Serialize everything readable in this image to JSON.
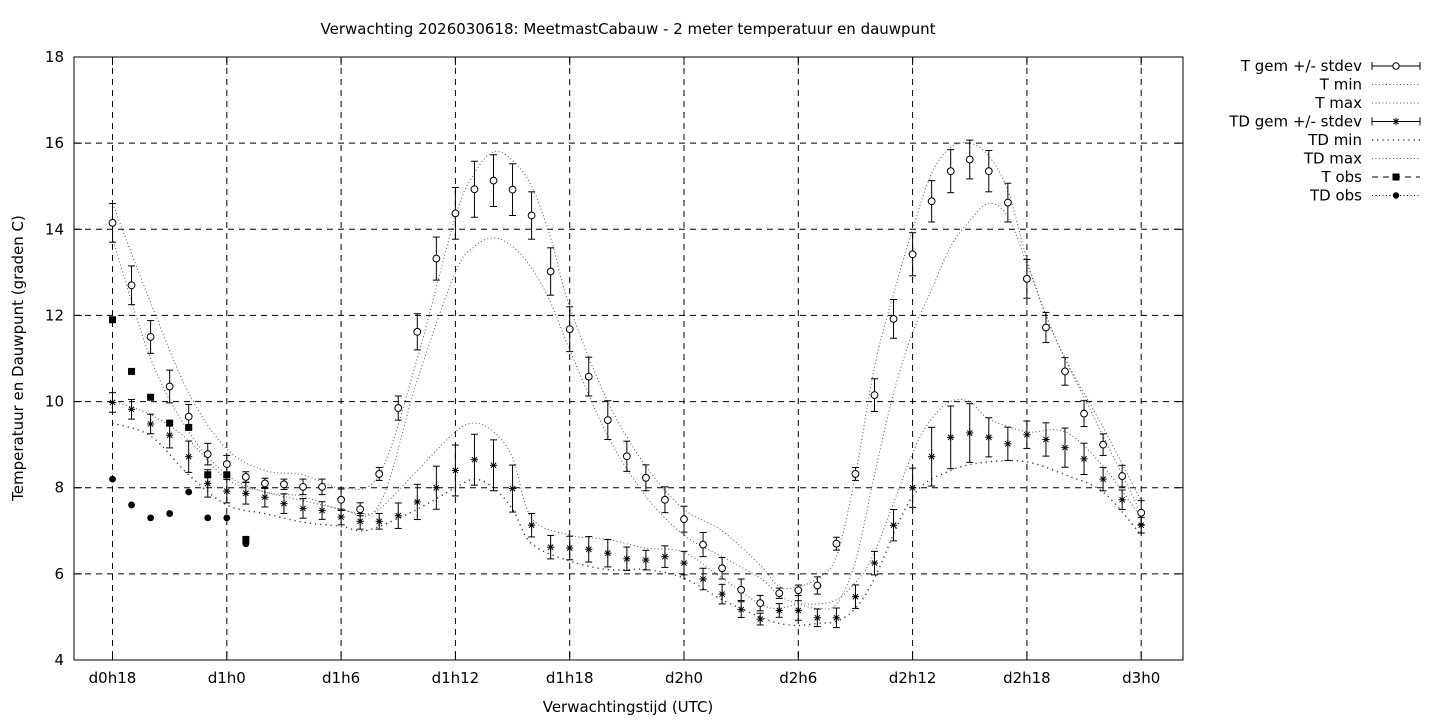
{
  "chart_data": {
    "type": "line",
    "title": "Verwachting 2026030618: MeetmastCabauw - 2 meter temperatuur en dauwpunt",
    "xlabel": "Verwachtingstijd (UTC)",
    "ylabel": "Temperatuur en Dauwpunt (graden C)",
    "xlim": [
      18,
      78
    ],
    "ylim": [
      4,
      18
    ],
    "x_unit": "hours since d0h0",
    "x_ticks": [
      {
        "x": 18,
        "label": "d0h18"
      },
      {
        "x": 24,
        "label": "d1h0"
      },
      {
        "x": 30,
        "label": "d1h6"
      },
      {
        "x": 36,
        "label": "d1h12"
      },
      {
        "x": 42,
        "label": "d1h18"
      },
      {
        "x": 48,
        "label": "d2h0"
      },
      {
        "x": 54,
        "label": "d2h6"
      },
      {
        "x": 60,
        "label": "d2h12"
      },
      {
        "x": 66,
        "label": "d2h18"
      },
      {
        "x": 72,
        "label": "d3h0"
      }
    ],
    "y_ticks": [
      4,
      6,
      8,
      10,
      12,
      14,
      16,
      18
    ],
    "grid": true,
    "legend_position": "outside-right",
    "legend": [
      {
        "label": "T gem +/- stdev",
        "style": "errorbar-circle"
      },
      {
        "label": "T min",
        "style": "dotted"
      },
      {
        "label": "T max",
        "style": "dotted"
      },
      {
        "label": "TD gem +/- stdev",
        "style": "errorbar-star"
      },
      {
        "label": "TD min",
        "style": "sparse-dotted"
      },
      {
        "label": "TD max",
        "style": "dotted"
      },
      {
        "label": "T obs",
        "style": "dashed-square"
      },
      {
        "label": "TD obs",
        "style": "dotted-dot"
      }
    ],
    "series": [
      {
        "name": "T gem +/- stdev",
        "x": [
          18,
          19,
          20,
          21,
          22,
          23,
          24,
          25,
          26,
          27,
          28,
          29,
          30,
          31,
          32,
          33,
          34,
          35,
          36,
          37,
          38,
          39,
          40,
          41,
          42,
          43,
          44,
          45,
          46,
          47,
          48,
          49,
          50,
          51,
          52,
          53,
          54,
          55,
          56,
          57,
          58,
          59,
          60,
          61,
          62,
          63,
          64,
          65,
          66,
          67,
          68,
          69,
          70,
          71,
          72
        ],
        "mean": [
          14.15,
          12.7,
          11.5,
          10.35,
          9.65,
          8.78,
          8.55,
          8.25,
          8.1,
          8.08,
          8.02,
          8.02,
          7.72,
          7.5,
          8.32,
          9.85,
          11.62,
          13.32,
          14.37,
          14.93,
          15.13,
          14.92,
          14.32,
          13.02,
          11.68,
          10.58,
          9.57,
          8.73,
          8.23,
          7.72,
          7.27,
          6.68,
          6.13,
          5.63,
          5.32,
          5.55,
          5.62,
          5.73,
          6.7,
          8.32,
          10.15,
          11.92,
          13.42,
          14.65,
          15.35,
          15.62,
          15.35,
          14.62,
          12.85,
          11.72,
          10.7,
          9.72,
          9.0,
          8.27,
          7.42
        ],
        "stdev": [
          0.45,
          0.45,
          0.38,
          0.38,
          0.28,
          0.25,
          0.2,
          0.12,
          0.12,
          0.12,
          0.18,
          0.18,
          0.25,
          0.15,
          0.15,
          0.28,
          0.42,
          0.5,
          0.6,
          0.65,
          0.6,
          0.6,
          0.55,
          0.55,
          0.52,
          0.45,
          0.45,
          0.35,
          0.3,
          0.3,
          0.3,
          0.28,
          0.25,
          0.25,
          0.18,
          0.12,
          0.12,
          0.2,
          0.15,
          0.15,
          0.38,
          0.45,
          0.5,
          0.48,
          0.5,
          0.45,
          0.48,
          0.45,
          0.45,
          0.35,
          0.32,
          0.3,
          0.25,
          0.25,
          0.28
        ]
      },
      {
        "name": "T min",
        "x": [
          18,
          20,
          22,
          24,
          26,
          28,
          30,
          32,
          34,
          36,
          37,
          38,
          39,
          40,
          41,
          42,
          44,
          46,
          48,
          50,
          52,
          53,
          54,
          55,
          56,
          57,
          58,
          59,
          60,
          61,
          62,
          63,
          64,
          65,
          66,
          67,
          68,
          70,
          72
        ],
        "values": [
          13.8,
          11.0,
          9.3,
          8.3,
          7.9,
          7.8,
          7.5,
          7.6,
          10.5,
          13.0,
          13.6,
          13.8,
          13.6,
          13.1,
          12.3,
          11.2,
          9.2,
          7.8,
          6.9,
          6.4,
          5.9,
          5.5,
          5.3,
          5.2,
          5.3,
          6.3,
          8.3,
          10.2,
          11.6,
          12.6,
          13.6,
          14.2,
          14.6,
          14.3,
          13.2,
          12.0,
          11.0,
          9.2,
          7.4
        ]
      },
      {
        "name": "T max",
        "x": [
          18,
          20,
          22,
          24,
          26,
          28,
          30,
          32,
          34,
          36,
          37,
          38,
          39,
          40,
          41,
          42,
          44,
          46,
          48,
          50,
          52,
          53,
          54,
          55,
          56,
          57,
          58,
          59,
          60,
          61,
          62,
          63,
          64,
          65,
          66,
          67,
          68,
          70,
          72
        ],
        "values": [
          14.6,
          12.3,
          10.2,
          8.9,
          8.4,
          8.3,
          8.0,
          8.3,
          11.0,
          14.3,
          15.3,
          15.8,
          15.6,
          15.0,
          13.8,
          12.2,
          10.0,
          8.5,
          7.5,
          7.0,
          6.2,
          5.7,
          5.7,
          5.9,
          6.4,
          8.3,
          10.8,
          12.5,
          14.0,
          15.3,
          15.9,
          16.0,
          15.7,
          14.9,
          13.3,
          12.0,
          11.0,
          9.4,
          7.7
        ]
      },
      {
        "name": "TD gem +/- stdev",
        "x": [
          18,
          19,
          20,
          21,
          22,
          23,
          24,
          25,
          26,
          27,
          28,
          29,
          30,
          31,
          32,
          33,
          34,
          35,
          36,
          37,
          38,
          39,
          40,
          41,
          42,
          43,
          44,
          45,
          46,
          47,
          48,
          49,
          50,
          51,
          52,
          53,
          54,
          55,
          56,
          57,
          58,
          59,
          60,
          61,
          62,
          63,
          64,
          65,
          66,
          67,
          68,
          69,
          70,
          71,
          72
        ],
        "mean": [
          9.98,
          9.82,
          9.48,
          9.22,
          8.72,
          8.1,
          7.92,
          7.87,
          7.78,
          7.63,
          7.52,
          7.47,
          7.32,
          7.22,
          7.22,
          7.35,
          7.67,
          8.0,
          8.4,
          8.65,
          8.52,
          7.98,
          7.13,
          6.62,
          6.6,
          6.57,
          6.48,
          6.35,
          6.32,
          6.4,
          6.25,
          5.88,
          5.53,
          5.17,
          4.95,
          5.15,
          5.15,
          4.98,
          4.98,
          5.47,
          6.25,
          7.13,
          8.0,
          8.72,
          9.17,
          9.27,
          9.17,
          9.02,
          9.23,
          9.12,
          8.93,
          8.67,
          8.2,
          7.72,
          7.13
        ]
      },
      {
        "name": "TD min",
        "x": [
          18,
          20,
          22,
          24,
          26,
          28,
          30,
          31,
          32,
          34,
          36,
          37,
          38,
          39,
          40,
          42,
          44,
          46,
          48,
          50,
          52,
          53,
          54,
          55,
          56,
          57,
          58,
          60,
          62,
          64,
          66,
          68,
          70,
          72
        ],
        "values": [
          9.5,
          9.2,
          8.3,
          7.6,
          7.4,
          7.2,
          7.1,
          7.0,
          7.1,
          7.5,
          8.0,
          8.2,
          8.0,
          7.5,
          6.7,
          6.3,
          6.1,
          6.1,
          5.9,
          5.4,
          5.0,
          4.85,
          4.8,
          4.85,
          4.9,
          5.2,
          5.9,
          7.8,
          8.4,
          8.6,
          8.6,
          8.3,
          7.9,
          6.9
        ]
      },
      {
        "name": "TD max",
        "x": [
          18,
          20,
          22,
          24,
          26,
          28,
          30,
          31,
          32,
          34,
          36,
          37,
          38,
          39,
          40,
          42,
          44,
          46,
          48,
          50,
          52,
          53,
          54,
          55,
          56,
          57,
          58,
          60,
          61,
          62,
          63,
          64,
          66,
          68,
          70,
          72
        ],
        "values": [
          10.0,
          9.7,
          9.1,
          8.2,
          7.9,
          7.7,
          7.5,
          7.4,
          7.5,
          8.4,
          9.3,
          9.5,
          9.3,
          8.7,
          7.3,
          6.9,
          6.8,
          6.6,
          6.5,
          5.9,
          5.3,
          5.2,
          5.3,
          5.3,
          5.4,
          5.8,
          6.5,
          8.8,
          9.6,
          10.0,
          10.0,
          9.6,
          9.3,
          9.3,
          8.5,
          7.3
        ]
      },
      {
        "name": "T obs",
        "x": [
          18,
          19,
          20,
          21,
          22,
          23,
          24,
          25
        ],
        "values": [
          11.9,
          10.7,
          10.1,
          9.5,
          9.4,
          8.3,
          8.3,
          6.8
        ]
      },
      {
        "name": "TD obs",
        "x": [
          18,
          19,
          20,
          21,
          22,
          23,
          24,
          25
        ],
        "values": [
          8.2,
          7.6,
          7.3,
          7.4,
          7.9,
          7.3,
          7.3,
          6.7
        ]
      }
    ]
  }
}
